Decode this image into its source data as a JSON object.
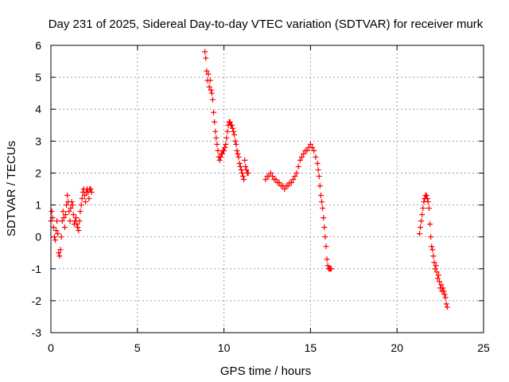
{
  "chart_data": {
    "type": "scatter",
    "title": "Day 231 of 2025, Sidereal Day-to-day VTEC variation (SDTVAR) for receiver murk",
    "xlabel": "GPS time / hours",
    "ylabel": "SDTVAR / TECUs",
    "xlim": [
      0,
      25
    ],
    "ylim": [
      -3,
      6
    ],
    "xticks": [
      0,
      5,
      10,
      15,
      20,
      25
    ],
    "yticks": [
      -3,
      -2,
      -1,
      0,
      1,
      2,
      3,
      4,
      5,
      6
    ],
    "xtick_labels": [
      "0",
      "5",
      "10",
      "15",
      "20",
      "25"
    ],
    "ytick_labels": [
      "-3",
      "-2",
      "-1",
      "0",
      "1",
      "2",
      "3",
      "4",
      "5",
      "6"
    ],
    "grid": true,
    "marker": "plus",
    "color": "#ff0000",
    "series": [
      {
        "name": "segment-1",
        "x": [
          0.0,
          0.05,
          0.1,
          0.15,
          0.2,
          0.25,
          0.3,
          0.35,
          0.4,
          0.45,
          0.5,
          0.55,
          0.6,
          0.65,
          0.7,
          0.75,
          0.8,
          0.85,
          0.9,
          0.95,
          1.0,
          1.05,
          1.1,
          1.15,
          1.2,
          1.25,
          1.3,
          1.35,
          1.4,
          1.45,
          1.5,
          1.55,
          1.6,
          1.65,
          1.7,
          1.75,
          1.8,
          1.85,
          1.9,
          1.95,
          2.0,
          2.05,
          2.1,
          2.15,
          2.2,
          2.25,
          2.3,
          2.35
        ],
        "y": [
          0.5,
          0.8,
          0.6,
          0.3,
          0.0,
          -0.1,
          0.2,
          0.5,
          0.1,
          -0.5,
          -0.6,
          -0.4,
          0.0,
          0.5,
          0.8,
          0.6,
          0.3,
          0.7,
          1.0,
          1.3,
          1.1,
          0.8,
          0.5,
          0.9,
          1.1,
          1.0,
          0.7,
          0.4,
          0.5,
          0.6,
          0.4,
          0.3,
          0.2,
          0.5,
          0.8,
          1.0,
          1.2,
          1.4,
          1.5,
          1.3,
          1.1,
          1.4,
          1.5,
          1.4,
          1.2,
          1.5,
          1.5,
          1.4
        ]
      },
      {
        "name": "segment-2",
        "x": [
          8.9,
          8.95,
          9.0,
          9.05,
          9.1,
          9.15,
          9.2,
          9.25,
          9.3,
          9.35,
          9.4,
          9.45,
          9.5,
          9.55,
          9.6,
          9.65,
          9.7,
          9.75,
          9.8,
          9.85,
          9.9,
          9.95,
          10.0,
          10.05,
          10.1,
          10.15,
          10.2,
          10.25,
          10.3,
          10.35,
          10.4,
          10.45,
          10.5,
          10.55,
          10.6,
          10.65,
          10.7,
          10.75,
          10.8,
          10.85,
          10.9,
          10.95,
          11.0,
          11.05,
          11.1,
          11.15,
          11.2,
          11.25,
          11.3,
          11.35,
          11.4
        ],
        "y": [
          5.8,
          5.6,
          5.2,
          4.9,
          5.1,
          4.7,
          4.9,
          4.6,
          4.5,
          4.3,
          3.9,
          3.6,
          3.3,
          3.1,
          2.9,
          2.7,
          2.5,
          2.4,
          2.5,
          2.6,
          2.6,
          2.7,
          2.7,
          2.8,
          2.9,
          3.1,
          3.3,
          3.5,
          3.6,
          3.6,
          3.5,
          3.5,
          3.4,
          3.3,
          3.2,
          3.0,
          2.9,
          2.7,
          2.6,
          2.5,
          2.3,
          2.2,
          2.1,
          2.0,
          1.9,
          1.8,
          2.4,
          2.2,
          2.1,
          2.0,
          2.0
        ]
      },
      {
        "name": "segment-3",
        "x": [
          12.4,
          12.5,
          12.6,
          12.7,
          12.8,
          12.9,
          13.0,
          13.1,
          13.2,
          13.3,
          13.4,
          13.5,
          13.6,
          13.7,
          13.8,
          13.9,
          14.0,
          14.1,
          14.2,
          14.3,
          14.4,
          14.5,
          14.6,
          14.7,
          14.8,
          14.9,
          15.0,
          15.1,
          15.2,
          15.3,
          15.4,
          15.45,
          15.5,
          15.55,
          15.6,
          15.65,
          15.7,
          15.75,
          15.8,
          15.85,
          15.9,
          15.95,
          16.0,
          16.05,
          16.1,
          16.15,
          16.2
        ],
        "y": [
          1.8,
          1.9,
          1.9,
          2.0,
          1.9,
          1.8,
          1.8,
          1.7,
          1.7,
          1.6,
          1.6,
          1.5,
          1.6,
          1.6,
          1.7,
          1.7,
          1.8,
          1.9,
          2.0,
          2.2,
          2.4,
          2.5,
          2.6,
          2.7,
          2.7,
          2.8,
          2.9,
          2.8,
          2.7,
          2.5,
          2.3,
          2.1,
          1.9,
          1.6,
          1.3,
          1.1,
          0.9,
          0.6,
          0.3,
          0.0,
          -0.3,
          -0.7,
          -0.9,
          -1.0,
          -1.0,
          -1.0,
          -1.0
        ]
      },
      {
        "name": "segment-4",
        "x": [
          21.3,
          21.35,
          21.4,
          21.45,
          21.5,
          21.55,
          21.6,
          21.65,
          21.7,
          21.75,
          21.8,
          21.85,
          21.9,
          21.95,
          22.0,
          22.05,
          22.1,
          22.15,
          22.2,
          22.25,
          22.3,
          22.35,
          22.4,
          22.45,
          22.5,
          22.55,
          22.6,
          22.65,
          22.7,
          22.75,
          22.8,
          22.85,
          22.9
        ],
        "y": [
          0.1,
          0.3,
          0.5,
          0.7,
          0.9,
          1.1,
          1.2,
          1.3,
          1.3,
          1.2,
          1.1,
          0.9,
          0.4,
          0.0,
          -0.3,
          -0.4,
          -0.6,
          -0.8,
          -1.0,
          -0.9,
          -1.1,
          -1.3,
          -1.2,
          -1.4,
          -1.6,
          -1.5,
          -1.7,
          -1.6,
          -1.7,
          -1.8,
          -1.9,
          -2.1,
          -2.2
        ]
      }
    ]
  }
}
